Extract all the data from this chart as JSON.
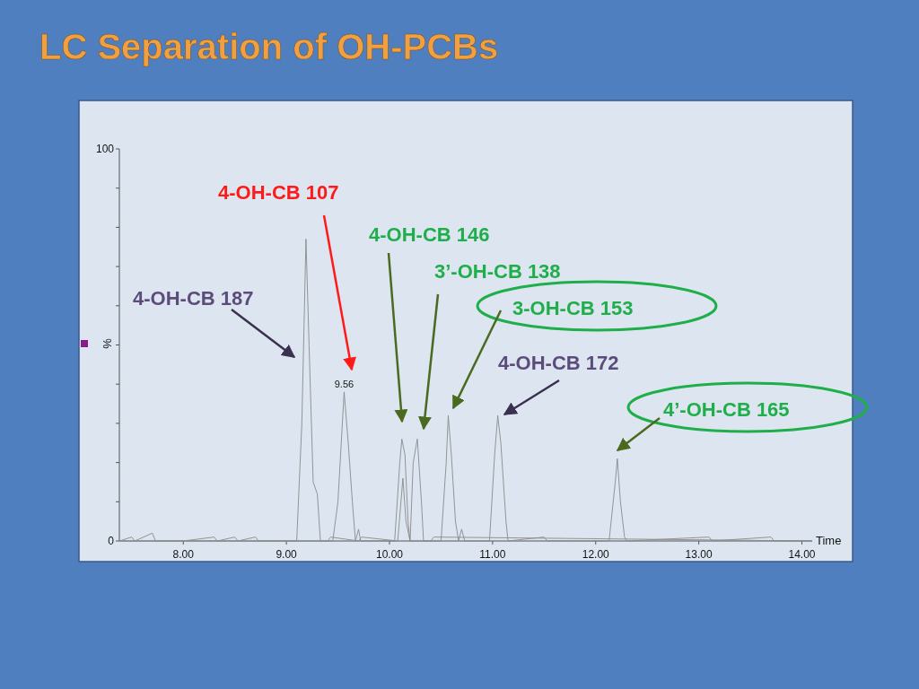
{
  "chart_data": {
    "type": "line",
    "title": "LC Separation of OH-PCBs",
    "xlabel": "Time",
    "ylabel": "%",
    "xlim": [
      7.38,
      14.1
    ],
    "ylim": [
      0,
      100
    ],
    "xticks": [
      {
        "value": 8,
        "label": "8.00"
      },
      {
        "value": 9,
        "label": "9.00"
      },
      {
        "value": 10,
        "label": "10.00"
      },
      {
        "value": 11,
        "label": "11.00"
      },
      {
        "value": 12,
        "label": "12.00"
      },
      {
        "value": 13,
        "label": "13.00"
      },
      {
        "value": 14,
        "label": "14.00"
      }
    ],
    "yticks": [
      0,
      {
        "value": 10,
        "label": null
      },
      {
        "value": 20,
        "label": null
      },
      {
        "value": 30,
        "label": null
      },
      {
        "value": 40,
        "label": null
      },
      {
        "value": 50,
        "label": null
      },
      {
        "value": 60,
        "label": null
      },
      {
        "value": 70,
        "label": null
      },
      {
        "value": 80,
        "label": null
      },
      {
        "value": 90,
        "label": null
      },
      100
    ],
    "grid": false,
    "marker": "none",
    "line_style": "solid",
    "series": [
      {
        "color": "#8a8a8a",
        "x": [
          7.38,
          7.5,
          7.53,
          7.7,
          7.73,
          8.0,
          8.3,
          8.33,
          8.5,
          8.53,
          8.7,
          8.73,
          9.0,
          9.1,
          9.15,
          9.19,
          9.22,
          9.26,
          9.3,
          9.33,
          9.45,
          9.5,
          9.56,
          9.6,
          9.64,
          9.67,
          9.7,
          9.72,
          10.05,
          10.1,
          10.12,
          10.15,
          10.18,
          10.2,
          10.23,
          10.27,
          10.31,
          10.33,
          10.5,
          10.55,
          10.57,
          10.6,
          10.64,
          10.67,
          10.7,
          10.73,
          10.97,
          11.02,
          11.05,
          11.08,
          11.13,
          11.15,
          11.5,
          11.53,
          12.13,
          12.19,
          12.21,
          12.24,
          12.28,
          12.3,
          13.1,
          13.13,
          13.7,
          13.73,
          14.1
        ],
        "values": [
          0,
          1,
          0,
          2,
          0,
          0,
          1,
          0,
          1,
          0,
          1,
          0,
          0,
          0,
          30,
          77,
          50,
          15,
          12,
          0,
          0,
          10,
          38,
          25,
          10,
          0,
          3,
          0,
          0,
          20,
          26,
          22,
          5,
          0,
          20,
          26,
          10,
          0,
          0,
          20,
          32,
          22,
          5,
          0,
          3,
          0,
          0,
          22,
          32,
          25,
          5,
          0,
          1,
          0,
          0,
          15,
          21,
          10,
          1,
          0,
          1,
          0,
          1,
          0,
          0
        ]
      },
      {
        "color": "#8a8a8a",
        "x": [
          7.38,
          9.4,
          9.43,
          9.7,
          9.73,
          10.08,
          10.13,
          10.16,
          10.2,
          10.4,
          10.43,
          14.1
        ],
        "values": [
          0,
          0,
          1,
          0,
          1,
          0,
          16,
          5,
          0,
          0,
          1,
          0
        ]
      }
    ],
    "annotations": [
      "4-OH-CB 187",
      "4-OH-CB 107",
      "4-OH-CB 146",
      "3’-OH-CB 138",
      "3-OH-CB 153",
      "4-OH-CB 172",
      "4’-OH-CB 165",
      {
        "text": "9.56",
        "x": 9.56,
        "y": 38
      }
    ]
  }
}
